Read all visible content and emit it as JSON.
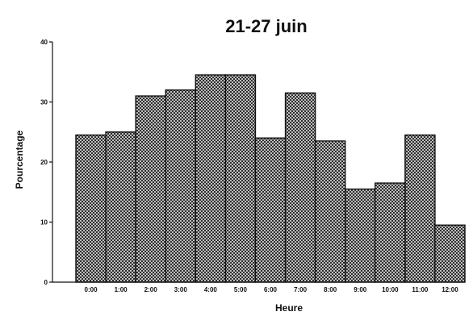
{
  "chart_data": {
    "type": "bar",
    "title": "21-27 juin",
    "xlabel": "Heure",
    "ylabel": "Pourcentage",
    "ylim": [
      0,
      40
    ],
    "yticks": [
      0,
      10,
      20,
      30,
      40
    ],
    "categories": [
      "0:00",
      "1:00",
      "2:00",
      "3:00",
      "4:00",
      "5:00",
      "6:00",
      "7:00",
      "8:00",
      "9:00",
      "10:00",
      "11:00",
      "12:00"
    ],
    "values": [
      24.5,
      25,
      31,
      32,
      34.5,
      34.5,
      24,
      31.5,
      23.5,
      15.5,
      16.5,
      24.5,
      9.5
    ],
    "grid": false,
    "legend": "none"
  }
}
